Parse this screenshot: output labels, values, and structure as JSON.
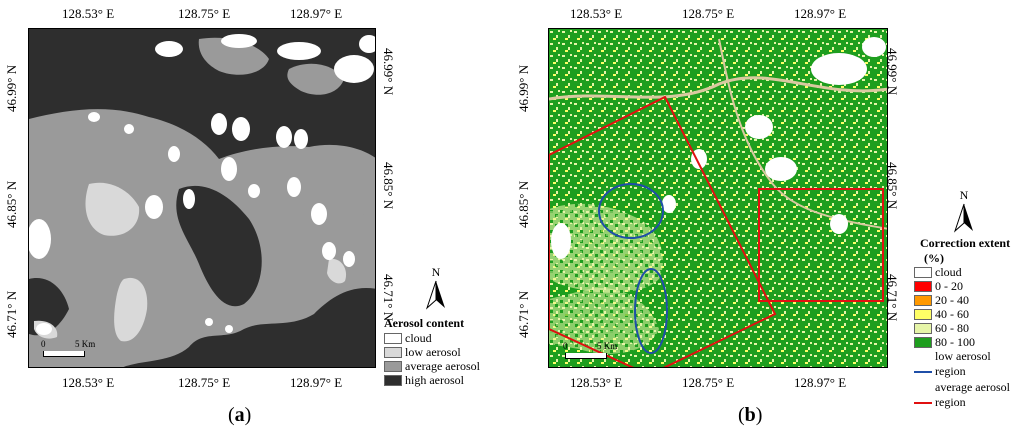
{
  "panel_a": {
    "label": "a",
    "lon_ticks": [
      "128.53° E",
      "128.75° E",
      "128.97° E"
    ],
    "lat_ticks": [
      "46.99° N",
      "46.85° N",
      "46.71° N"
    ],
    "legend": {
      "title": "Aerosol content",
      "items": [
        {
          "label": "cloud",
          "color": "#ffffff"
        },
        {
          "label": "low aerosol",
          "color": "#d9d9d9"
        },
        {
          "label": "average aerosol",
          "color": "#9a9a9a"
        },
        {
          "label": "high aerosol",
          "color": "#2e2e2e"
        }
      ]
    },
    "north": "N",
    "scale": {
      "start": "0",
      "end": "5 Km"
    }
  },
  "panel_b": {
    "label": "b",
    "lon_ticks": [
      "128.53° E",
      "128.75° E",
      "128.97° E"
    ],
    "lat_ticks": [
      "46.99° N",
      "46.85° N",
      "46.71° N"
    ],
    "legend": {
      "title": "Correction extent",
      "unit": "(%)",
      "items": [
        {
          "label": "cloud",
          "color": "#ffffff"
        },
        {
          "label": "0 - 20",
          "color": "#ff0000"
        },
        {
          "label": "20 - 40",
          "color": "#ff9900"
        },
        {
          "label": "40 - 60",
          "color": "#ffff66"
        },
        {
          "label": "60 - 80",
          "color": "#e6f5a8"
        },
        {
          "label": "80 - 100",
          "color": "#1e9e1e"
        }
      ],
      "lines": [
        {
          "label_1": "low aerosol",
          "label_2": "region",
          "color": "#1f4fa8"
        },
        {
          "label_1": "average aerosol",
          "label_2": "region",
          "color": "#e01010"
        }
      ]
    },
    "north": "N",
    "scale": {
      "start": "0",
      "end": "5 Km"
    }
  }
}
